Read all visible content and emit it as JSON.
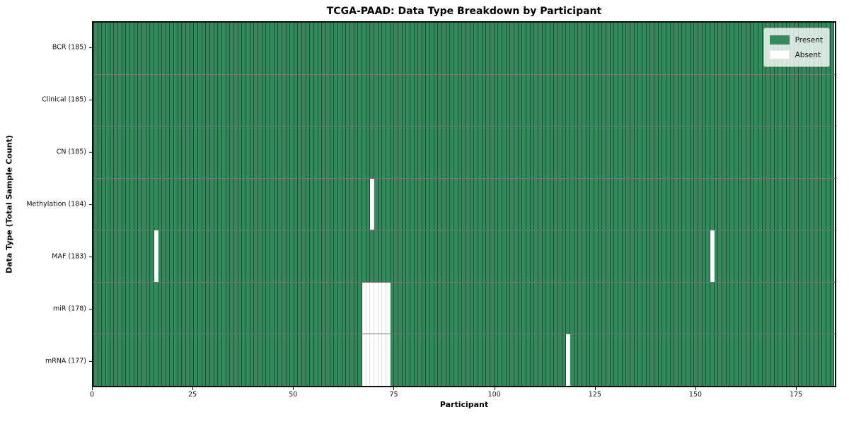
{
  "chart_data": {
    "type": "heatmap",
    "title": "TCGA-PAAD: Data Type Breakdown by Participant",
    "xlabel": "Participant",
    "ylabel": "Data Type (Total Sample Count)",
    "xlim": [
      0,
      185
    ],
    "n_participants": 185,
    "x_ticks": [
      0,
      25,
      50,
      75,
      100,
      125,
      150,
      175
    ],
    "grid": "off",
    "legend_position": "upper right",
    "colors": {
      "present": "#348a5c",
      "absent": "#ffffff"
    },
    "legend": [
      {
        "label": "Present",
        "swatch": "present"
      },
      {
        "label": "Absent",
        "swatch": "absent"
      }
    ],
    "rows": [
      {
        "label": "BCR (185)",
        "total_samples": 185,
        "absent_participants": []
      },
      {
        "label": "Clinical (185)",
        "total_samples": 185,
        "absent_participants": []
      },
      {
        "label": "CN (185)",
        "total_samples": 185,
        "absent_participants": []
      },
      {
        "label": "Methylation (184)",
        "total_samples": 184,
        "absent_participants": [
          69
        ]
      },
      {
        "label": "MAF (183)",
        "total_samples": 183,
        "absent_participants": [
          15,
          154
        ]
      },
      {
        "label": "miR (178)",
        "total_samples": 178,
        "absent_participants": [
          67,
          68,
          69,
          70,
          71,
          72,
          73
        ]
      },
      {
        "label": "mRNA (177)",
        "total_samples": 177,
        "absent_participants": [
          67,
          68,
          69,
          70,
          71,
          72,
          73,
          118
        ]
      }
    ]
  }
}
